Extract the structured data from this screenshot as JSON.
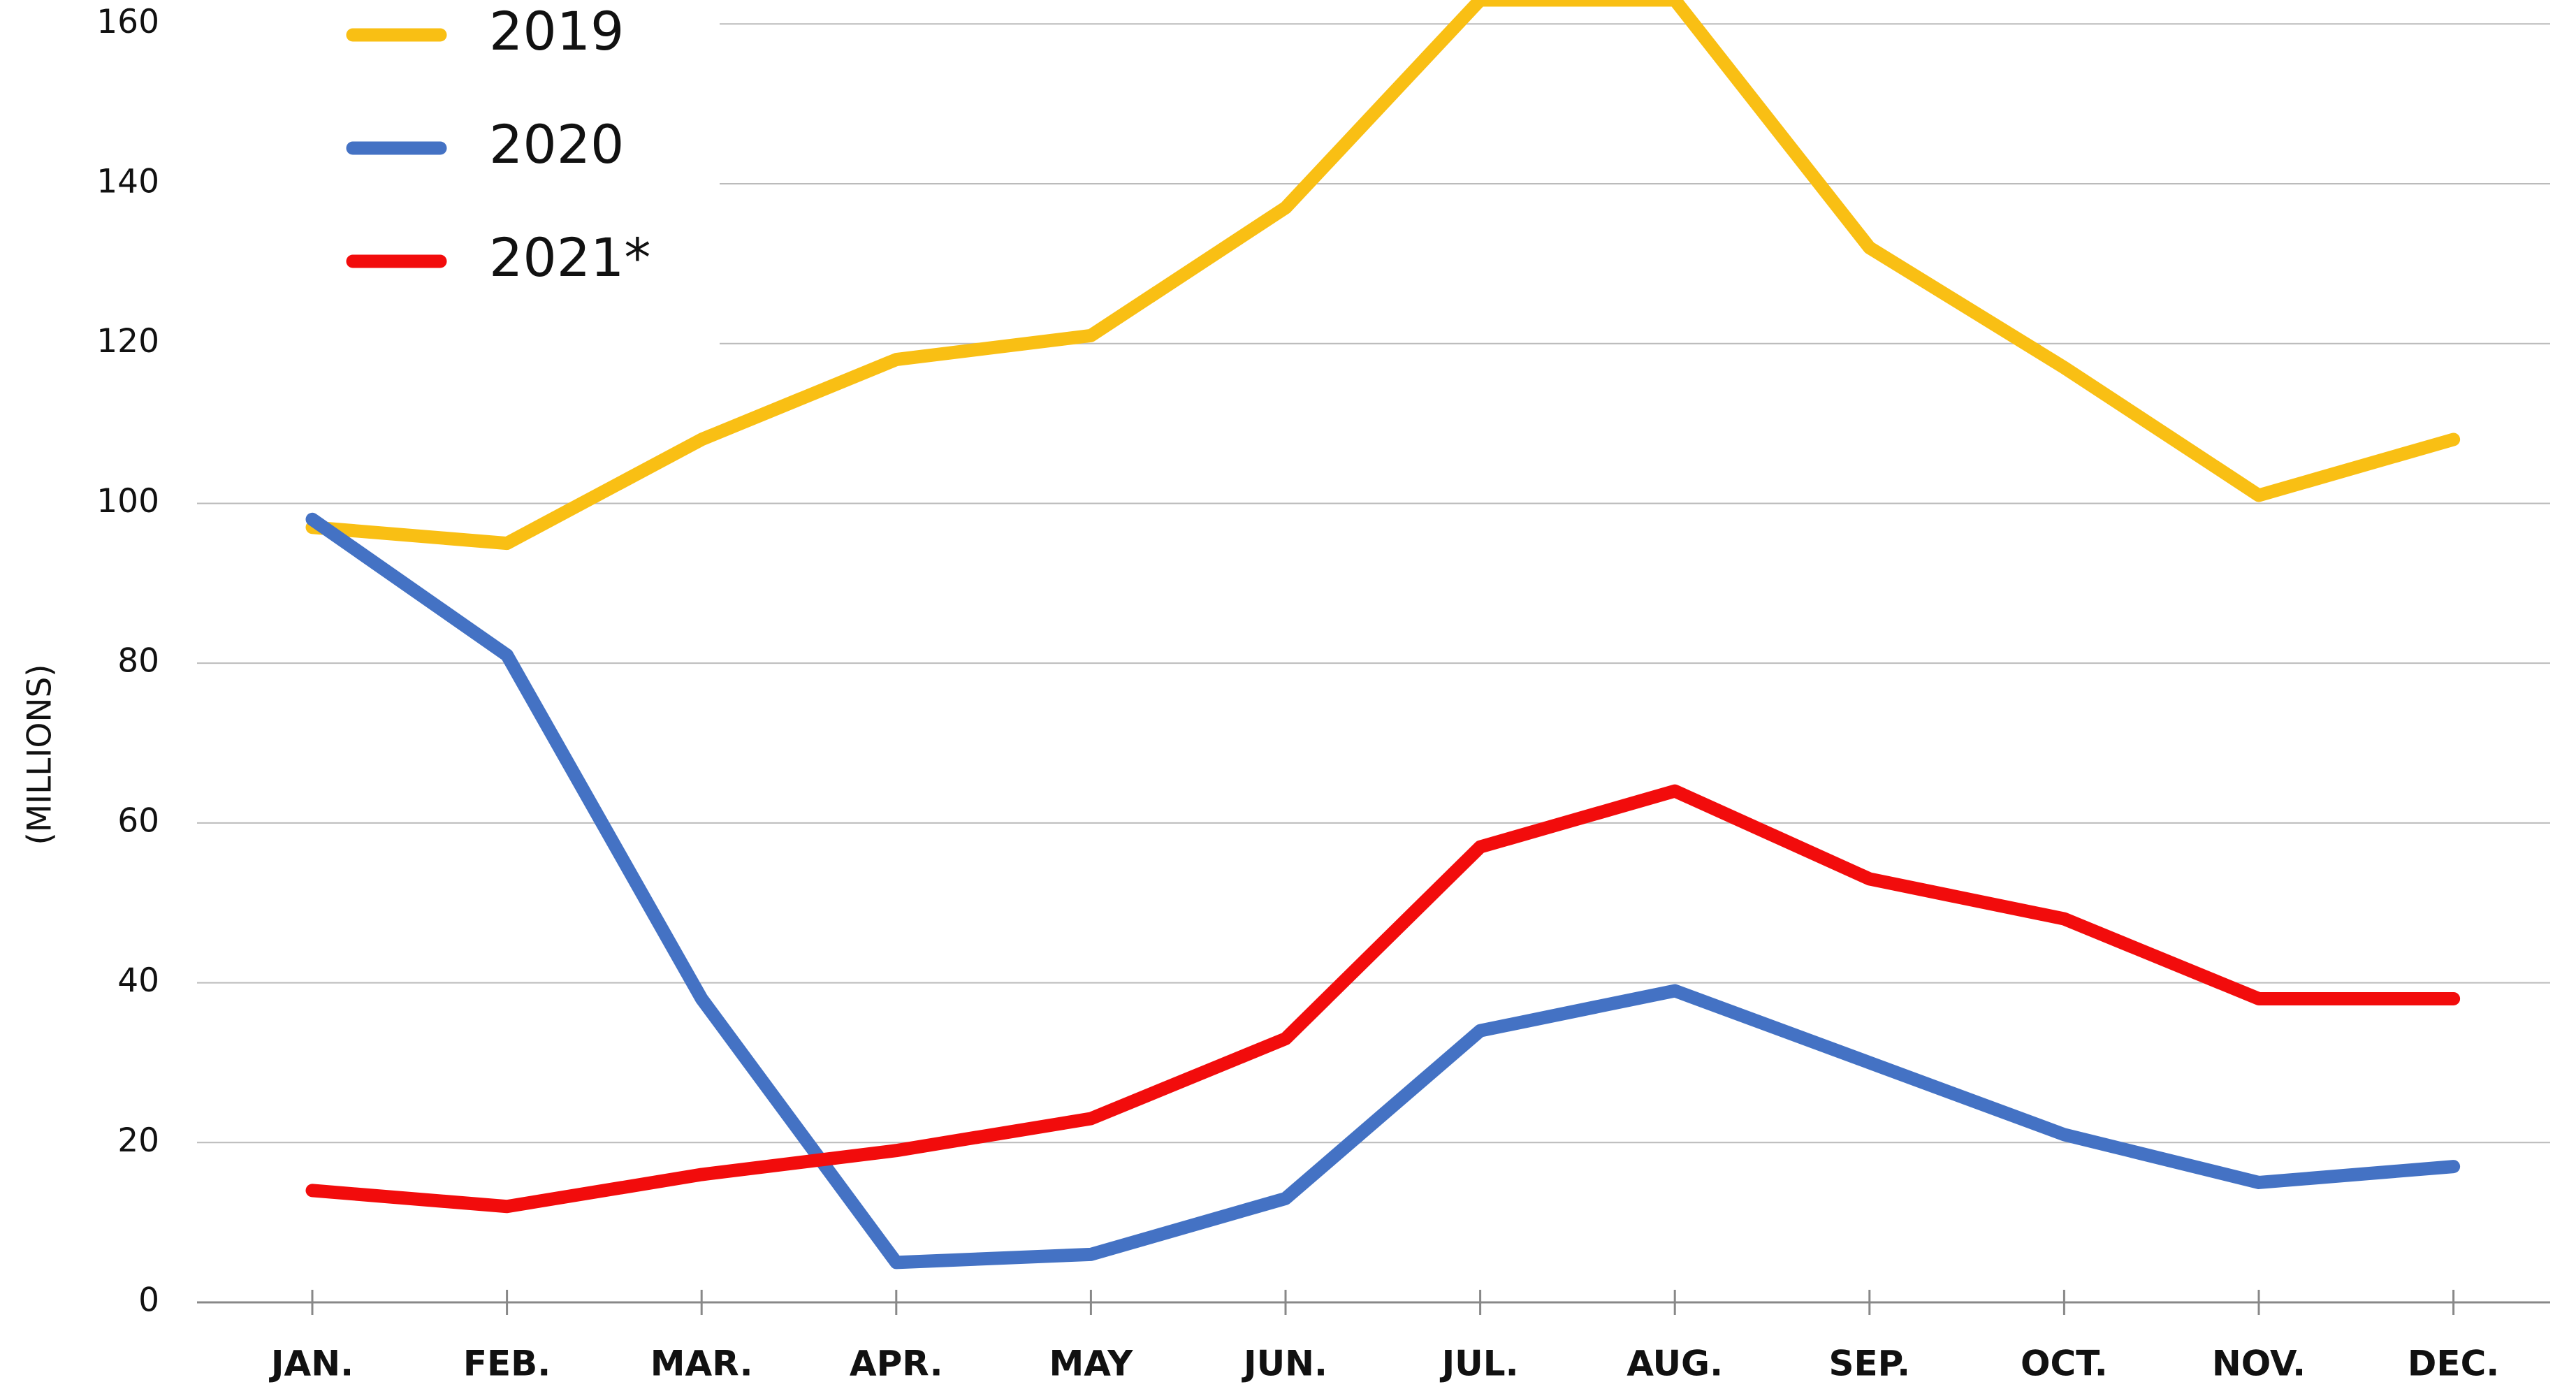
{
  "chart_data": {
    "type": "line",
    "y_label": "(MILLIONS)",
    "categories": [
      "JAN.",
      "FEB.",
      "MAR.",
      "APR.",
      "MAY",
      "JUN.",
      "JUL.",
      "AUG.",
      "SEP.",
      "OCT.",
      "NOV.",
      "DEC."
    ],
    "series": [
      {
        "name": "2019",
        "color": "#f9bf14",
        "values": [
          97,
          95,
          108,
          118,
          121,
          137,
          163,
          163,
          132,
          117,
          101,
          108
        ]
      },
      {
        "name": "2020",
        "color": "#4472c4",
        "values": [
          98,
          81,
          38,
          5,
          6,
          13,
          34,
          39,
          30,
          21,
          15,
          17
        ]
      },
      {
        "name": "2021*",
        "color": "#f20c0c",
        "values": [
          14,
          12,
          16,
          19,
          23,
          33,
          57,
          64,
          53,
          48,
          38,
          38
        ]
      }
    ],
    "ylim": [
      0,
      163
    ],
    "yticks": [
      0,
      20,
      40,
      60,
      80,
      100,
      120,
      140,
      160
    ],
    "grid": true
  }
}
